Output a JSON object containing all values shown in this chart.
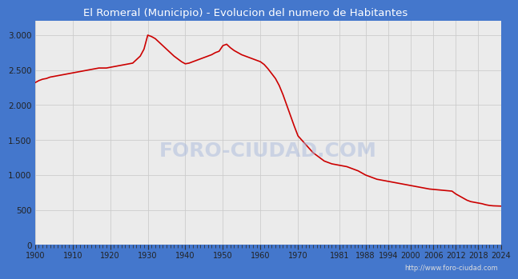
{
  "title": "El Romeral (Municipio) - Evolucion del numero de Habitantes",
  "title_bg_color": "#4477cc",
  "title_font_color": "#ffffff",
  "plot_bg_color": "#ebebeb",
  "outer_bg_color": "#4477cc",
  "line_color": "#cc0000",
  "line_width": 1.2,
  "url_text": "http://www.foro-ciudad.com",
  "xlim": [
    1900,
    2024
  ],
  "ylim": [
    0,
    3200
  ],
  "yticks": [
    0,
    500,
    1000,
    1500,
    2000,
    2500,
    3000
  ],
  "xticks": [
    1900,
    1910,
    1920,
    1930,
    1940,
    1950,
    1960,
    1970,
    1981,
    1988,
    1994,
    2000,
    2006,
    2012,
    2018,
    2024
  ],
  "years": [
    1900,
    1901,
    1902,
    1903,
    1904,
    1905,
    1906,
    1907,
    1908,
    1909,
    1910,
    1911,
    1912,
    1913,
    1914,
    1915,
    1916,
    1917,
    1918,
    1919,
    1920,
    1921,
    1922,
    1923,
    1924,
    1925,
    1926,
    1927,
    1928,
    1929,
    1930,
    1931,
    1932,
    1933,
    1934,
    1935,
    1936,
    1937,
    1938,
    1939,
    1940,
    1941,
    1942,
    1943,
    1944,
    1945,
    1946,
    1947,
    1948,
    1949,
    1950,
    1951,
    1952,
    1953,
    1954,
    1955,
    1956,
    1957,
    1958,
    1959,
    1960,
    1961,
    1962,
    1963,
    1964,
    1965,
    1966,
    1967,
    1968,
    1969,
    1970,
    1971,
    1972,
    1973,
    1974,
    1975,
    1976,
    1977,
    1978,
    1979,
    1980,
    1981,
    1982,
    1983,
    1984,
    1985,
    1986,
    1987,
    1988,
    1989,
    1990,
    1991,
    1992,
    1993,
    1994,
    1995,
    1996,
    1997,
    1998,
    1999,
    2000,
    2001,
    2002,
    2003,
    2004,
    2005,
    2006,
    2007,
    2008,
    2009,
    2010,
    2011,
    2012,
    2013,
    2014,
    2015,
    2016,
    2017,
    2018,
    2019,
    2020,
    2021,
    2022,
    2023,
    2024
  ],
  "population": [
    2320,
    2350,
    2370,
    2380,
    2400,
    2410,
    2420,
    2430,
    2440,
    2450,
    2460,
    2470,
    2480,
    2490,
    2500,
    2510,
    2520,
    2530,
    2530,
    2530,
    2540,
    2550,
    2560,
    2570,
    2580,
    2590,
    2600,
    2650,
    2700,
    2800,
    3000,
    2980,
    2950,
    2900,
    2850,
    2800,
    2750,
    2700,
    2660,
    2620,
    2590,
    2600,
    2620,
    2640,
    2660,
    2680,
    2700,
    2720,
    2750,
    2770,
    2850,
    2870,
    2820,
    2780,
    2750,
    2720,
    2700,
    2680,
    2660,
    2640,
    2620,
    2580,
    2520,
    2450,
    2380,
    2280,
    2150,
    2000,
    1850,
    1700,
    1560,
    1500,
    1440,
    1380,
    1320,
    1280,
    1240,
    1200,
    1180,
    1160,
    1150,
    1140,
    1130,
    1120,
    1100,
    1080,
    1060,
    1030,
    1000,
    980,
    960,
    940,
    930,
    920,
    910,
    900,
    890,
    880,
    870,
    860,
    850,
    840,
    830,
    820,
    810,
    800,
    795,
    790,
    785,
    780,
    775,
    770,
    730,
    700,
    670,
    640,
    620,
    610,
    600,
    590,
    575,
    565,
    560,
    558,
    556
  ]
}
